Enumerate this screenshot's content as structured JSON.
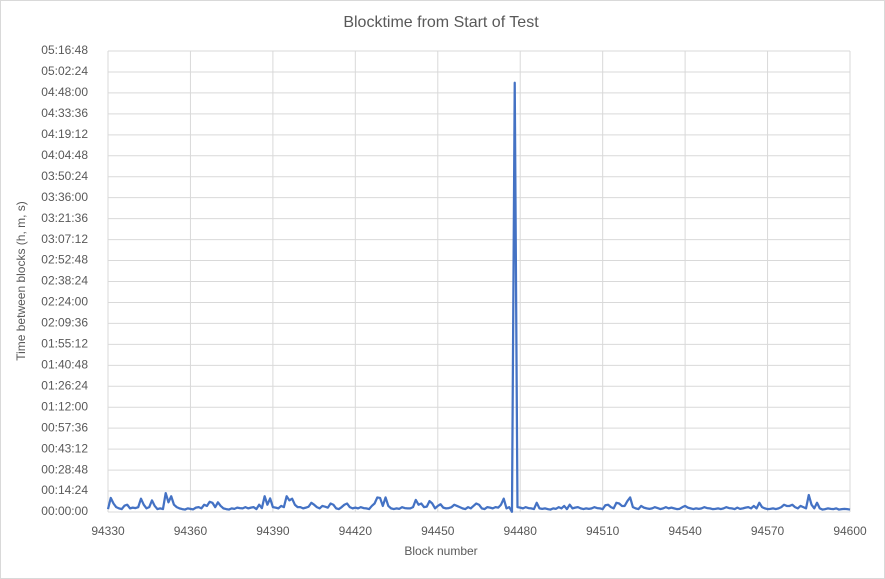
{
  "chart_data": {
    "type": "line",
    "title": "Blocktime from Start of Test",
    "xlabel": "Block number",
    "ylabel": "Time between blocks (h, m, s)",
    "x": [
      94330,
      94331,
      94332,
      94333,
      94334,
      94335,
      94336,
      94337,
      94338,
      94339,
      94340,
      94341,
      94342,
      94343,
      94344,
      94345,
      94346,
      94347,
      94348,
      94349,
      94350,
      94351,
      94352,
      94353,
      94354,
      94355,
      94356,
      94357,
      94358,
      94359,
      94360,
      94361,
      94362,
      94363,
      94364,
      94365,
      94366,
      94367,
      94368,
      94369,
      94370,
      94371,
      94372,
      94373,
      94374,
      94375,
      94376,
      94377,
      94378,
      94379,
      94380,
      94381,
      94382,
      94383,
      94384,
      94385,
      94386,
      94387,
      94388,
      94389,
      94390,
      94391,
      94392,
      94393,
      94394,
      94395,
      94396,
      94397,
      94398,
      94399,
      94400,
      94401,
      94402,
      94403,
      94404,
      94405,
      94406,
      94407,
      94408,
      94409,
      94410,
      94411,
      94412,
      94413,
      94414,
      94415,
      94416,
      94417,
      94418,
      94419,
      94420,
      94421,
      94422,
      94423,
      94424,
      94425,
      94426,
      94427,
      94428,
      94429,
      94430,
      94431,
      94432,
      94433,
      94434,
      94435,
      94436,
      94437,
      94438,
      94439,
      94440,
      94441,
      94442,
      94443,
      94444,
      94445,
      94446,
      94447,
      94448,
      94449,
      94450,
      94451,
      94452,
      94453,
      94454,
      94455,
      94456,
      94457,
      94458,
      94459,
      94460,
      94461,
      94462,
      94463,
      94464,
      94465,
      94466,
      94467,
      94468,
      94469,
      94470,
      94471,
      94472,
      94473,
      94474,
      94475,
      94476,
      94477,
      94478,
      94479,
      94480,
      94481,
      94482,
      94483,
      94484,
      94485,
      94486,
      94487,
      94488,
      94489,
      94490,
      94491,
      94492,
      94493,
      94494,
      94495,
      94496,
      94497,
      94498,
      94499,
      94500,
      94501,
      94502,
      94503,
      94504,
      94505,
      94506,
      94507,
      94508,
      94509,
      94510,
      94511,
      94512,
      94513,
      94514,
      94515,
      94516,
      94517,
      94518,
      94519,
      94520,
      94521,
      94522,
      94523,
      94524,
      94525,
      94526,
      94527,
      94528,
      94529,
      94530,
      94531,
      94532,
      94533,
      94534,
      94535,
      94536,
      94537,
      94538,
      94539,
      94540,
      94541,
      94542,
      94543,
      94544,
      94545,
      94546,
      94547,
      94548,
      94549,
      94550,
      94551,
      94552,
      94553,
      94554,
      94555,
      94556,
      94557,
      94558,
      94559,
      94560,
      94561,
      94562,
      94563,
      94564,
      94565,
      94566,
      94567,
      94568,
      94569,
      94570,
      94571,
      94572,
      94573,
      94574,
      94575,
      94576,
      94577,
      94578,
      94579,
      94580,
      94581,
      94582,
      94583,
      94584,
      94585,
      94586,
      94587,
      94588,
      94589,
      94590,
      94591,
      94592,
      94593,
      94594,
      94595,
      94596,
      94597,
      94598,
      94599,
      94600
    ],
    "series": [
      {
        "color": "#4472c4",
        "values": [
          120,
          580,
          350,
          200,
          150,
          120,
          260,
          300,
          150,
          180,
          160,
          200,
          550,
          300,
          150,
          200,
          480,
          250,
          120,
          150,
          120,
          780,
          400,
          650,
          300,
          200,
          150,
          120,
          100,
          150,
          130,
          110,
          180,
          200,
          150,
          300,
          250,
          420,
          380,
          200,
          400,
          250,
          150,
          120,
          100,
          150,
          130,
          180,
          160,
          150,
          200,
          150,
          180,
          200,
          120,
          300,
          160,
          650,
          300,
          560,
          200,
          180,
          150,
          250,
          200,
          650,
          480,
          550,
          300,
          200,
          200,
          150,
          180,
          220,
          380,
          300,
          200,
          150,
          250,
          220,
          180,
          350,
          300,
          150,
          120,
          200,
          300,
          350,
          200,
          150,
          180,
          150,
          200,
          160,
          150,
          120,
          250,
          350,
          600,
          580,
          250,
          600,
          250,
          150,
          120,
          150,
          130,
          200,
          160,
          150,
          150,
          200,
          500,
          300,
          350,
          200,
          220,
          450,
          350,
          150,
          250,
          320,
          180,
          150,
          160,
          200,
          300,
          250,
          200,
          150,
          120,
          200,
          150,
          250,
          350,
          300,
          150,
          120,
          200,
          180,
          150,
          200,
          180,
          300,
          550,
          150,
          200,
          10,
          17700,
          200,
          180,
          150,
          200,
          160,
          150,
          120,
          380,
          150,
          130,
          150,
          120,
          100,
          150,
          130,
          200,
          150,
          250,
          120,
          300,
          150,
          180,
          200,
          150,
          120,
          150,
          130,
          150,
          200,
          160,
          150,
          120,
          280,
          300,
          200,
          150,
          380,
          350,
          250,
          250,
          450,
          600,
          200,
          150,
          120,
          250,
          180,
          150,
          130,
          150,
          200,
          160,
          120,
          150,
          200,
          150,
          180,
          150,
          120,
          130,
          200,
          250,
          180,
          150,
          120,
          150,
          130,
          150,
          200,
          160,
          150,
          120,
          130,
          150,
          120,
          150,
          200,
          160,
          150,
          120,
          180,
          130,
          150,
          180,
          200,
          150,
          250,
          150,
          380,
          200,
          150,
          120,
          130,
          150,
          120,
          150,
          200,
          300,
          250,
          250,
          300,
          200,
          150,
          250,
          200,
          150,
          700,
          300,
          150,
          380,
          150,
          100,
          120,
          150,
          130,
          120,
          150,
          100,
          120,
          130,
          120,
          100
        ]
      }
    ],
    "xlim": [
      94330,
      94600
    ],
    "xticks": [
      94330,
      94360,
      94390,
      94420,
      94450,
      94480,
      94510,
      94540,
      94570,
      94600
    ],
    "ylim": [
      0,
      19008
    ],
    "yticks": [
      {
        "value": 0,
        "label": "00:00:00"
      },
      {
        "value": 864,
        "label": "00:14:24"
      },
      {
        "value": 1728,
        "label": "00:28:48"
      },
      {
        "value": 2592,
        "label": "00:43:12"
      },
      {
        "value": 3456,
        "label": "00:57:36"
      },
      {
        "value": 4320,
        "label": "01:12:00"
      },
      {
        "value": 5184,
        "label": "01:26:24"
      },
      {
        "value": 6048,
        "label": "01:40:48"
      },
      {
        "value": 6912,
        "label": "01:55:12"
      },
      {
        "value": 7776,
        "label": "02:09:36"
      },
      {
        "value": 8640,
        "label": "02:24:00"
      },
      {
        "value": 9504,
        "label": "02:38:24"
      },
      {
        "value": 10368,
        "label": "02:52:48"
      },
      {
        "value": 11232,
        "label": "03:07:12"
      },
      {
        "value": 12096,
        "label": "03:21:36"
      },
      {
        "value": 12960,
        "label": "03:36:00"
      },
      {
        "value": 13824,
        "label": "03:50:24"
      },
      {
        "value": 14688,
        "label": "04:04:48"
      },
      {
        "value": 15552,
        "label": "04:19:12"
      },
      {
        "value": 16416,
        "label": "04:33:36"
      },
      {
        "value": 17280,
        "label": "04:48:00"
      },
      {
        "value": 18144,
        "label": "05:02:24"
      },
      {
        "value": 19008,
        "label": "05:16:48"
      }
    ],
    "grid": true
  }
}
